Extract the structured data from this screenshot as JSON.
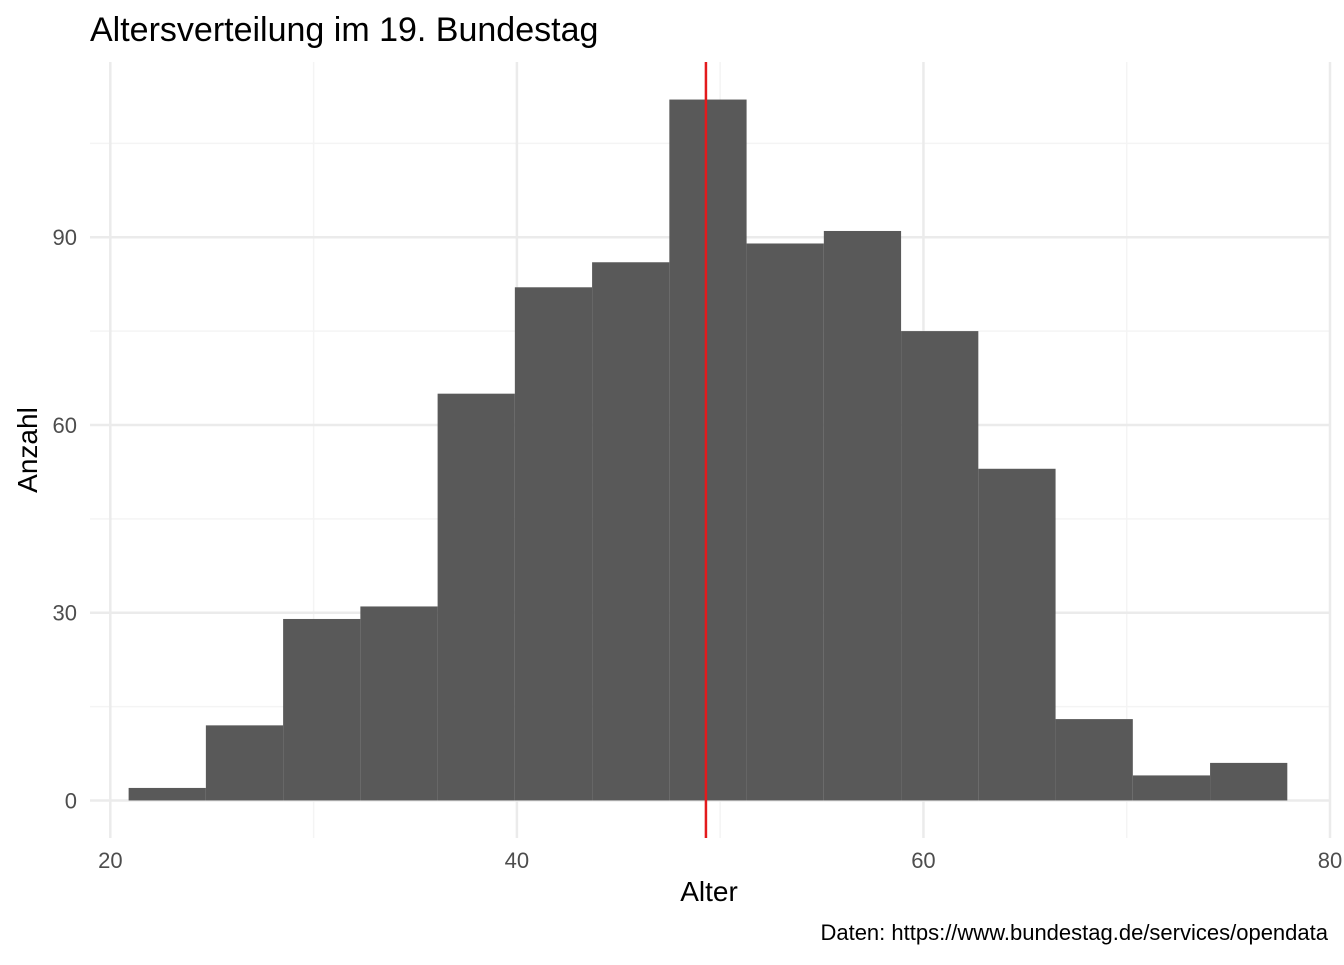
{
  "chart_data": {
    "type": "bar",
    "title": "Altersverteilung im 19. Bundestag",
    "xlabel": "Alter",
    "ylabel": "Anzahl",
    "caption": "Daten: https://www.bundestag.de/services/opendata",
    "xlim": [
      19,
      80
    ],
    "ylim": [
      -6,
      118
    ],
    "x_ticks": [
      20,
      40,
      60,
      80
    ],
    "y_ticks": [
      0,
      30,
      60,
      90
    ],
    "grid": true,
    "bins": [
      {
        "start": 20.9,
        "end": 24.7,
        "value": 2
      },
      {
        "start": 24.7,
        "end": 28.5,
        "value": 12
      },
      {
        "start": 28.5,
        "end": 32.3,
        "value": 29
      },
      {
        "start": 32.3,
        "end": 36.1,
        "value": 31
      },
      {
        "start": 36.1,
        "end": 39.9,
        "value": 65
      },
      {
        "start": 39.9,
        "end": 43.7,
        "value": 82
      },
      {
        "start": 43.7,
        "end": 47.5,
        "value": 86
      },
      {
        "start": 47.5,
        "end": 51.3,
        "value": 112
      },
      {
        "start": 51.3,
        "end": 55.1,
        "value": 89
      },
      {
        "start": 55.1,
        "end": 58.9,
        "value": 91
      },
      {
        "start": 58.9,
        "end": 62.7,
        "value": 75
      },
      {
        "start": 62.7,
        "end": 66.5,
        "value": 53
      },
      {
        "start": 66.5,
        "end": 70.3,
        "value": 13
      },
      {
        "start": 70.3,
        "end": 74.1,
        "value": 4
      },
      {
        "start": 74.1,
        "end": 77.9,
        "value": 6
      }
    ],
    "mean_line": {
      "x": 49.3,
      "color": "#e31a1c"
    },
    "bar_color": "#595959",
    "grid_major_color": "#ebebeb",
    "grid_minor_color": "#f4f4f4"
  }
}
